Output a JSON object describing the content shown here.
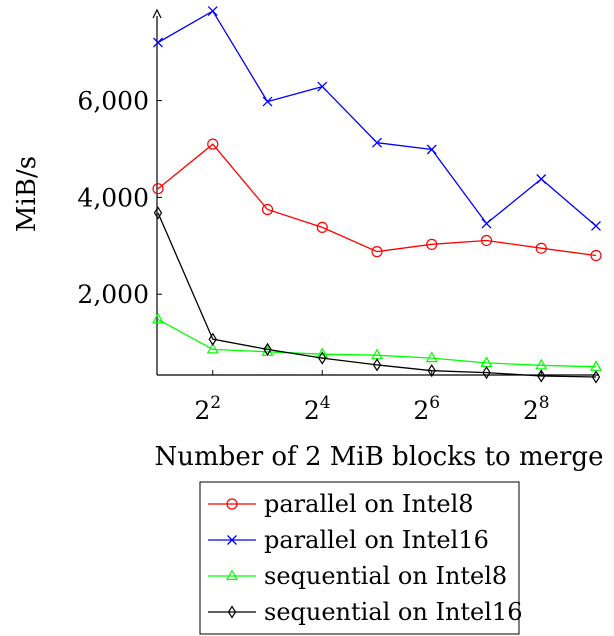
{
  "chart_data": {
    "type": "line",
    "xlabel": "Number of 2 MiB blocks to merge",
    "ylabel": "MiB/s",
    "x_scale": "log2",
    "x": [
      2,
      4,
      8,
      16,
      32,
      64,
      128,
      256,
      512
    ],
    "x_ticks": [
      {
        "value": 4,
        "base": "2",
        "exp": "2"
      },
      {
        "value": 16,
        "base": "2",
        "exp": "4"
      },
      {
        "value": 64,
        "base": "2",
        "exp": "6"
      },
      {
        "value": 256,
        "base": "2",
        "exp": "8"
      }
    ],
    "y_ticks": [
      {
        "value": 2000,
        "label": "2,000"
      },
      {
        "value": 4000,
        "label": "4,000"
      },
      {
        "value": 6000,
        "label": "6,000"
      }
    ],
    "xlim": [
      2,
      512
    ],
    "ylim": [
      0,
      7600
    ],
    "grid": false,
    "legend_position": "bottom",
    "series": [
      {
        "name": "parallel on Intel8",
        "color": "#ff0000",
        "marker": "circle",
        "values": [
          4180,
          5100,
          3750,
          3380,
          2880,
          3030,
          3110,
          2950,
          2800
        ]
      },
      {
        "name": "parallel on Intel16",
        "color": "#0000ff",
        "marker": "x",
        "values": [
          7200,
          7850,
          5980,
          6290,
          5130,
          4990,
          3460,
          4380,
          3410
        ]
      },
      {
        "name": "sequential on Intel8",
        "color": "#00ff00",
        "marker": "triangle",
        "values": [
          1480,
          860,
          810,
          760,
          740,
          680,
          580,
          530,
          500
        ]
      },
      {
        "name": "sequential on Intel16",
        "color": "#000000",
        "marker": "diamond",
        "values": [
          3680,
          1070,
          860,
          680,
          540,
          420,
          380,
          310,
          290
        ]
      }
    ]
  }
}
